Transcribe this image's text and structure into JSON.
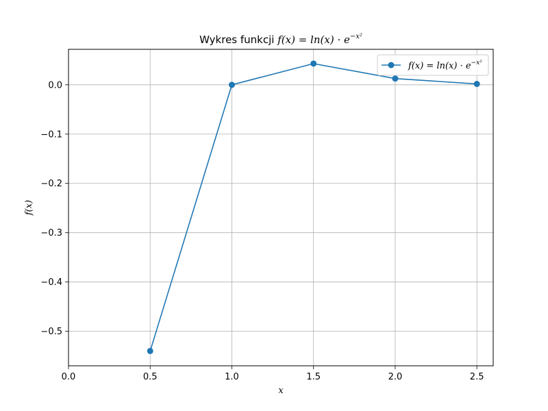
{
  "chart_data": {
    "type": "line",
    "title": "Wykres funkcji f(x) = ln(x) · e^{−x²}",
    "title_parts": {
      "prefix": "Wykres funkcji ",
      "formula": "f(x) = ln(x) · e",
      "exponent": "−x²"
    },
    "xlabel": "x",
    "ylabel": "f(x)",
    "xlim": [
      0.0,
      2.6
    ],
    "ylim": [
      -0.57,
      0.072
    ],
    "x_ticks": [
      0.0,
      0.5,
      1.0,
      1.5,
      2.0,
      2.5
    ],
    "x_tick_labels": [
      "0.0",
      "0.5",
      "1.0",
      "1.5",
      "2.0",
      "2.5"
    ],
    "y_ticks": [
      -0.5,
      -0.4,
      -0.3,
      -0.2,
      -0.1,
      0.0
    ],
    "y_tick_labels": [
      "−0.5",
      "−0.4",
      "−0.3",
      "−0.2",
      "−0.1",
      "0.0"
    ],
    "grid": true,
    "legend_position": "top-right",
    "series": [
      {
        "name": "f(x) = ln(x) · e^{−x²}",
        "legend_parts": {
          "formula": "f(x) = ln(x) · e",
          "exponent": "−x²"
        },
        "color": "#1f77b4",
        "marker": "circle",
        "x": [
          0.5,
          1.0,
          1.5,
          2.0,
          2.5
        ],
        "y": [
          -0.54,
          0.0,
          0.043,
          0.0127,
          0.00177
        ]
      }
    ]
  }
}
